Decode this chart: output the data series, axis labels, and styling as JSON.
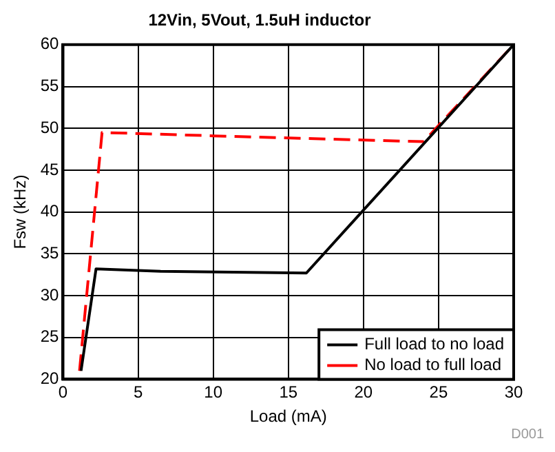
{
  "chart_data": {
    "type": "line",
    "title": "12Vin, 5Vout, 1.5uH inductor",
    "xlabel": "Load (mA)",
    "ylabel": "Fsw (kHz)",
    "annotations": [
      "D001"
    ],
    "series": [
      {
        "name": "Full load to no load",
        "color": "#000000",
        "x": [
          1.2,
          2.2,
          6.5,
          16.2,
          30
        ],
        "values": [
          21,
          33.2,
          32.9,
          32.7,
          60
        ]
      },
      {
        "name": "No load to full load",
        "color": "#ff0000",
        "line_style": "dashed",
        "x": [
          1.1,
          2.6,
          10,
          16,
          24,
          30
        ],
        "values": [
          21,
          49.5,
          49.1,
          48.8,
          48.4,
          60
        ]
      }
    ],
    "xlim": [
      0,
      30
    ],
    "xticks": [
      0,
      5,
      10,
      15,
      20,
      25,
      30
    ],
    "ylim": [
      20,
      60
    ],
    "yticks": [
      20,
      25,
      30,
      35,
      40,
      45,
      50,
      55,
      60
    ],
    "grid": true,
    "legend": "bottom right",
    "line_style": "solid",
    "marker": "none"
  }
}
